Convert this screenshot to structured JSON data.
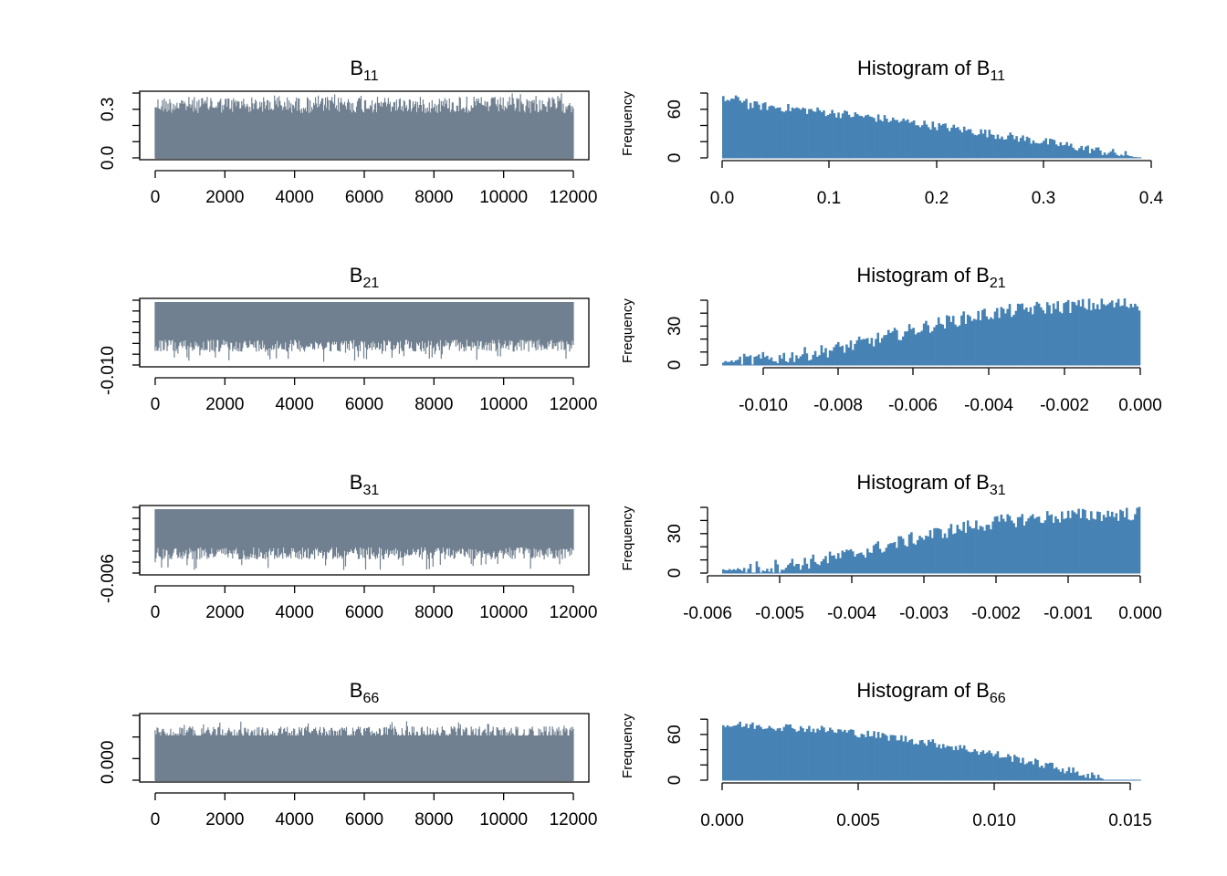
{
  "trace_color": "#708090",
  "hist_color": "#4682b4",
  "charts": [
    {
      "trace": {
        "title": "B",
        "title_sub": "11",
        "x_ticks": [
          "0",
          "2000",
          "4000",
          "6000",
          "8000",
          "10000",
          "12000"
        ],
        "y_ticks": [
          "0.0",
          "0.3"
        ]
      },
      "hist": {
        "title": "Histogram of B",
        "title_sub": "11",
        "ylabel": "Frequency",
        "x_ticks": [
          "0.0",
          "0.1",
          "0.2",
          "0.3",
          "0.4"
        ],
        "y_ticks": [
          "0",
          "60"
        ]
      }
    },
    {
      "trace": {
        "title": "B",
        "title_sub": "21",
        "x_ticks": [
          "0",
          "2000",
          "4000",
          "6000",
          "8000",
          "10000",
          "12000"
        ],
        "y_ticks": [
          "-0.010"
        ]
      },
      "hist": {
        "title": "Histogram of B",
        "title_sub": "21",
        "ylabel": "Frequency",
        "x_ticks": [
          "-0.010",
          "-0.008",
          "-0.006",
          "-0.004",
          "-0.002",
          "0.000"
        ],
        "y_ticks": [
          "0",
          "30"
        ]
      }
    },
    {
      "trace": {
        "title": "B",
        "title_sub": "31",
        "x_ticks": [
          "0",
          "2000",
          "4000",
          "6000",
          "8000",
          "10000",
          "12000"
        ],
        "y_ticks": [
          "-0.006"
        ]
      },
      "hist": {
        "title": "Histogram of B",
        "title_sub": "31",
        "ylabel": "Frequency",
        "x_ticks": [
          "-0.006",
          "-0.005",
          "-0.004",
          "-0.003",
          "-0.002",
          "-0.001",
          "0.000"
        ],
        "y_ticks": [
          "0",
          "30"
        ]
      }
    },
    {
      "trace": {
        "title": "B",
        "title_sub": "66",
        "x_ticks": [
          "0",
          "2000",
          "4000",
          "6000",
          "8000",
          "10000",
          "12000"
        ],
        "y_ticks": [
          "0.000"
        ]
      },
      "hist": {
        "title": "Histogram of B",
        "title_sub": "66",
        "ylabel": "Frequency",
        "x_ticks": [
          "0.000",
          "0.005",
          "0.010",
          "0.015"
        ],
        "y_ticks": [
          "0",
          "60"
        ]
      }
    }
  ],
  "chart_data": [
    {
      "type": "line",
      "series_of": "trace",
      "n_iterations": 12000,
      "xlim": [
        0,
        12000
      ],
      "ylim": [
        0.0,
        0.4
      ],
      "value_range": [
        0.0,
        0.38
      ]
    },
    {
      "type": "bar",
      "series_of": "histogram",
      "xlim": [
        0.0,
        0.4
      ],
      "ylim": [
        0,
        80
      ],
      "bins": 200,
      "shape": "decreasing from peak near 0.02 to zero near 0.39",
      "peak": 80
    },
    {
      "type": "line",
      "series_of": "trace",
      "n_iterations": 12000,
      "xlim": [
        0,
        12000
      ],
      "ylim": [
        -0.012,
        0.0
      ],
      "value_range": [
        -0.012,
        0.0
      ]
    },
    {
      "type": "bar",
      "series_of": "histogram",
      "xlim": [
        -0.011,
        0.0
      ],
      "ylim": [
        0,
        50
      ],
      "bins": 200,
      "shape": "increasing toward 0",
      "peak": 48
    },
    {
      "type": "line",
      "series_of": "trace",
      "n_iterations": 12000,
      "xlim": [
        0,
        12000
      ],
      "ylim": [
        -0.006,
        0.0
      ],
      "value_range": [
        -0.006,
        0.0
      ]
    },
    {
      "type": "bar",
      "series_of": "histogram",
      "xlim": [
        -0.006,
        0.0
      ],
      "ylim": [
        0,
        50
      ],
      "bins": 200,
      "shape": "increasing toward 0",
      "peak": 48
    },
    {
      "type": "line",
      "series_of": "trace",
      "n_iterations": 12000,
      "xlim": [
        0,
        12000
      ],
      "ylim": [
        0.0,
        0.016
      ],
      "value_range": [
        0.0,
        0.0155
      ]
    },
    {
      "type": "bar",
      "series_of": "histogram",
      "xlim": [
        0.0,
        0.0155
      ],
      "ylim": [
        0,
        90
      ],
      "bins": 200,
      "shape": "decreasing from peak near 0.001 to zero near 0.0155",
      "peak": 85
    }
  ]
}
